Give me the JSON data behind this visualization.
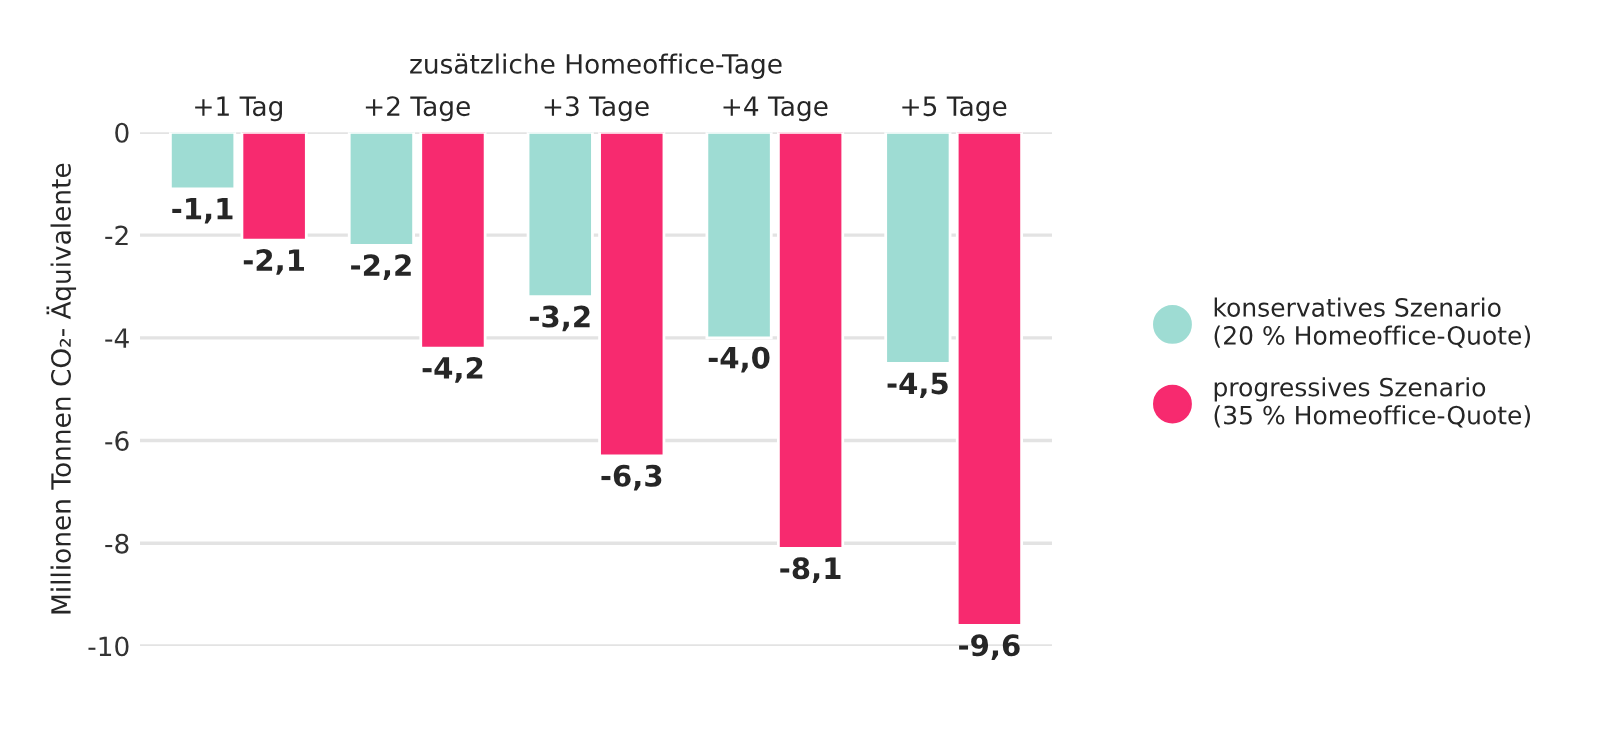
{
  "chart_data": {
    "type": "bar",
    "xlabel": "zusätzliche Homeoffice-Tage",
    "ylabel": "Millionen Tonnen CO₂- Äquivalente",
    "categories": [
      "+1 Tag",
      "+2 Tage",
      "+3 Tage",
      "+4 Tage",
      "+5 Tage"
    ],
    "series": [
      {
        "name": "konservatives Szenario\n(20 % Homeoffice-Quote)",
        "color": "#9edcd3",
        "values": [
          -1.1,
          -2.2,
          -3.2,
          -4.0,
          -4.5
        ],
        "value_labels": [
          "-1,1",
          "-2,2",
          "-3,2",
          "-4,0",
          "-4,5"
        ]
      },
      {
        "name": "progressives Szenario\n(35 % Homeoffice-Quote)",
        "color": "#f72a6f",
        "values": [
          -2.1,
          -4.2,
          -6.3,
          -8.1,
          -9.6
        ],
        "value_labels": [
          "-2,1",
          "-4,2",
          "-6,3",
          "-8,1",
          "-9,6"
        ]
      }
    ],
    "ylim": [
      -10,
      0
    ],
    "yticks": [
      0,
      -2,
      -4,
      -6,
      -8,
      -10
    ],
    "grid": "y",
    "legend": "right",
    "marker": "circle"
  }
}
